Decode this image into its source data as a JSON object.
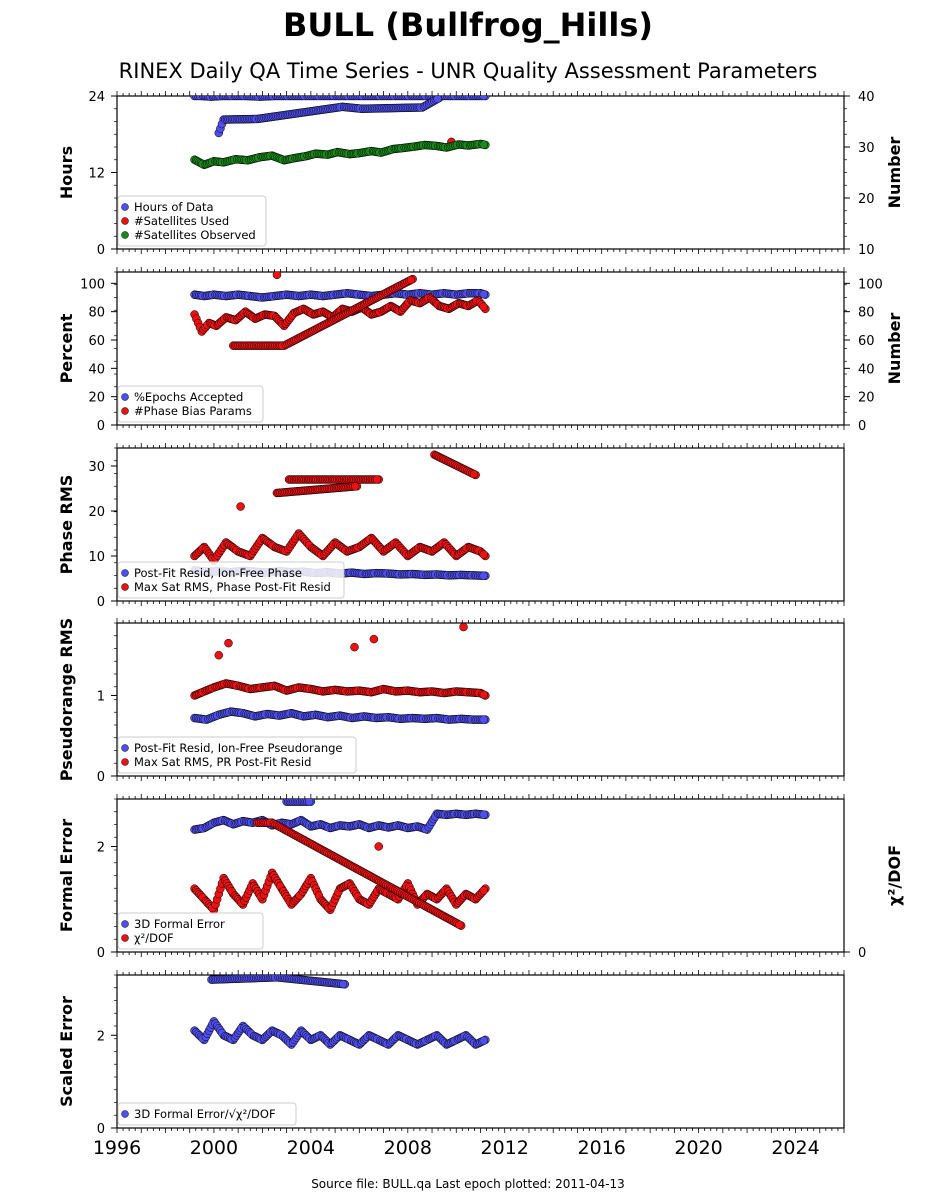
{
  "title": "BULL (Bullfrog_Hills)",
  "subtitle": "RINEX Daily QA Time Series - UNR Quality Assessment Parameters",
  "footer": "Source file: BULL.qa Last epoch plotted: 2011-04-13",
  "colors": {
    "blue": "#4f4fef",
    "red": "#ee1111",
    "green": "#1a8a1a",
    "edge": "#000000"
  },
  "chart_data": [
    {
      "type": "scatter",
      "ylabel": "Hours",
      "ylabel_right": "Number",
      "xlim": [
        1996,
        2026
      ],
      "ylim": [
        0,
        24
      ],
      "yticks": [
        0,
        12,
        24
      ],
      "ylim_right": [
        10,
        40
      ],
      "yticks_right": [
        10,
        20,
        30,
        40
      ],
      "legend_location": "lower-left",
      "series": [
        {
          "name": "Hours of Data",
          "color": "blue",
          "axis": "left",
          "x": [
            1999.2,
            1999.5,
            1999.9,
            2000.3,
            2000.8,
            2001.3,
            2001.9,
            2002.5,
            2003.1,
            2003.8,
            2004.4,
            2005.0,
            2005.6,
            2006.2,
            2006.9,
            2007.5,
            2008.1,
            2008.8,
            2009.4,
            2010.0,
            2010.6,
            2011.2,
            2000.2,
            2000.4,
            2001.8,
            2005.3,
            2006.1,
            2008.6,
            2009.3
          ],
          "y": [
            24,
            24,
            23.9,
            24,
            24,
            24,
            23.9,
            24,
            24,
            24,
            24,
            24,
            24,
            24,
            24,
            24,
            24,
            24,
            24,
            24,
            24,
            24,
            18.2,
            20.3,
            20.4,
            22.3,
            22.0,
            22.2,
            23.7
          ]
        },
        {
          "name": "#Satellites Used",
          "color": "red",
          "axis": "right",
          "x": [
            2009.8
          ],
          "y": [
            31
          ]
        },
        {
          "name": "#Satellites Observed",
          "color": "green",
          "axis": "right",
          "x": [
            1999.2,
            1999.6,
            2000.0,
            2000.4,
            2000.9,
            2001.4,
            2001.9,
            2002.4,
            2002.9,
            2003.3,
            2003.8,
            2004.2,
            2004.7,
            2005.1,
            2005.6,
            2006.0,
            2006.5,
            2006.9,
            2007.4,
            2007.8,
            2008.3,
            2008.7,
            2009.2,
            2009.6,
            2010.1,
            2010.5,
            2011.0,
            2011.2
          ],
          "y": [
            27.5,
            26.5,
            27.2,
            27.0,
            27.6,
            27.4,
            28.0,
            28.3,
            27.4,
            27.8,
            28.2,
            28.7,
            28.5,
            29.0,
            28.6,
            28.8,
            29.2,
            28.9,
            29.6,
            29.8,
            30.1,
            30.4,
            30.2,
            29.9,
            30.5,
            30.3,
            30.6,
            30.4
          ]
        }
      ]
    },
    {
      "type": "scatter",
      "ylabel": "Percent",
      "ylabel_right": "Number",
      "xlim": [
        1996,
        2026
      ],
      "ylim": [
        0,
        108
      ],
      "yticks": [
        0,
        20,
        40,
        60,
        80,
        100
      ],
      "ylim_right": [
        0,
        108
      ],
      "yticks_right": [
        0,
        20,
        40,
        60,
        80,
        100
      ],
      "legend_location": "lower-left",
      "series": [
        {
          "name": "%Epochs Accepted",
          "color": "blue",
          "axis": "left",
          "x": [
            1999.2,
            1999.6,
            2000.0,
            2000.5,
            2001.0,
            2001.5,
            2002.0,
            2002.5,
            2003.0,
            2003.5,
            2004.0,
            2004.5,
            2005.0,
            2005.5,
            2006.0,
            2006.5,
            2007.0,
            2007.5,
            2008.0,
            2008.5,
            2009.0,
            2009.5,
            2010.0,
            2010.5,
            2011.0,
            2011.2
          ],
          "y": [
            92,
            91,
            92,
            91,
            92,
            91,
            90,
            91,
            92,
            91,
            92,
            91,
            92,
            93,
            92,
            91,
            92,
            93,
            92,
            93,
            92,
            93,
            92,
            93,
            93,
            92
          ]
        },
        {
          "name": "#Phase Bias Params",
          "color": "red",
          "axis": "right",
          "x": [
            1999.2,
            1999.5,
            1999.8,
            2000.1,
            2000.5,
            2000.9,
            2001.3,
            2001.7,
            2002.1,
            2002.5,
            2002.9,
            2003.3,
            2003.7,
            2004.1,
            2004.5,
            2004.9,
            2005.3,
            2005.7,
            2006.1,
            2006.5,
            2006.9,
            2007.3,
            2007.7,
            2008.1,
            2008.5,
            2008.9,
            2009.3,
            2009.7,
            2010.1,
            2010.5,
            2010.9,
            2011.2,
            2002.6,
            2000.8,
            2002.9,
            2008.2
          ],
          "y": [
            78,
            66,
            72,
            70,
            76,
            74,
            80,
            75,
            78,
            77,
            70,
            79,
            82,
            78,
            80,
            76,
            82,
            80,
            83,
            78,
            80,
            84,
            80,
            88,
            86,
            90,
            84,
            82,
            86,
            84,
            88,
            82,
            106,
            56,
            56,
            103
          ]
        }
      ]
    },
    {
      "type": "scatter",
      "ylabel": "Phase RMS",
      "xlim": [
        1996,
        2026
      ],
      "ylim": [
        0,
        34
      ],
      "yticks": [
        0,
        10,
        20,
        30
      ],
      "legend_location": "lower-left",
      "series": [
        {
          "name": "Post-Fit Resid, Ion-Free Phase",
          "color": "blue",
          "x": [
            1999.2,
            1999.7,
            2000.2,
            2000.7,
            2001.2,
            2001.7,
            2002.2,
            2002.7,
            2003.2,
            2003.7,
            2004.2,
            2004.7,
            2005.2,
            2005.7,
            2006.2,
            2006.7,
            2007.2,
            2007.7,
            2008.2,
            2008.7,
            2009.2,
            2009.7,
            2010.2,
            2010.7,
            2011.2
          ],
          "y": [
            6.8,
            6.5,
            6.6,
            6.4,
            6.7,
            6.5,
            6.3,
            6.6,
            6.4,
            6.5,
            6.2,
            6.4,
            6.1,
            6.3,
            6.0,
            6.2,
            6.1,
            5.9,
            6.0,
            5.8,
            5.9,
            5.7,
            5.8,
            5.7,
            5.6
          ]
        },
        {
          "name": "Max Sat RMS, Phase Post-Fit Resid",
          "color": "red",
          "x": [
            1999.2,
            1999.6,
            2000.0,
            2000.5,
            2001.0,
            2001.5,
            2002.0,
            2002.5,
            2003.0,
            2003.5,
            2004.0,
            2004.5,
            2005.0,
            2005.5,
            2006.0,
            2006.5,
            2007.0,
            2007.5,
            2008.0,
            2008.5,
            2009.0,
            2009.5,
            2010.0,
            2010.5,
            2011.0,
            2011.2,
            2009.1,
            2010.8,
            2003.1,
            2006.8,
            2002.6,
            2005.9,
            2001.1
          ],
          "y": [
            10,
            12,
            9,
            13,
            11,
            10,
            14,
            12,
            11,
            15,
            12,
            10,
            13,
            11,
            12,
            14,
            11,
            13,
            10,
            12,
            11,
            13,
            10,
            12,
            11,
            10,
            32.5,
            28,
            27,
            27,
            24,
            25.5,
            21
          ]
        }
      ]
    },
    {
      "type": "scatter",
      "ylabel": "Pseudorange RMS",
      "xlim": [
        1996,
        2026
      ],
      "ylim": [
        0,
        1.9
      ],
      "yticks": [
        0,
        1
      ],
      "legend_location": "lower-left",
      "series": [
        {
          "name": "Post-Fit Resid, Ion-Free Pseudorange",
          "color": "blue",
          "x": [
            1999.2,
            1999.7,
            2000.2,
            2000.7,
            2001.2,
            2001.7,
            2002.2,
            2002.7,
            2003.2,
            2003.7,
            2004.2,
            2004.7,
            2005.2,
            2005.7,
            2006.2,
            2006.7,
            2007.2,
            2007.7,
            2008.2,
            2008.7,
            2009.2,
            2009.7,
            2010.2,
            2010.7,
            2011.2
          ],
          "y": [
            0.72,
            0.7,
            0.76,
            0.8,
            0.78,
            0.74,
            0.77,
            0.75,
            0.78,
            0.74,
            0.76,
            0.73,
            0.75,
            0.72,
            0.74,
            0.72,
            0.73,
            0.71,
            0.72,
            0.71,
            0.72,
            0.7,
            0.71,
            0.7,
            0.7
          ]
        },
        {
          "name": "Max Sat RMS, PR Post-Fit Resid",
          "color": "red",
          "x": [
            1999.2,
            1999.6,
            2000.0,
            2000.5,
            2001.0,
            2001.5,
            2002.0,
            2002.5,
            2003.0,
            2003.5,
            2004.0,
            2004.5,
            2005.0,
            2005.5,
            2006.0,
            2006.5,
            2007.0,
            2007.5,
            2008.0,
            2008.5,
            2009.0,
            2009.5,
            2010.0,
            2010.5,
            2011.0,
            2011.2,
            2010.3,
            2006.6,
            2005.8,
            2000.6,
            2000.2
          ],
          "y": [
            1.0,
            1.05,
            1.1,
            1.15,
            1.12,
            1.08,
            1.1,
            1.12,
            1.06,
            1.1,
            1.08,
            1.05,
            1.07,
            1.05,
            1.06,
            1.04,
            1.08,
            1.05,
            1.06,
            1.04,
            1.05,
            1.03,
            1.05,
            1.04,
            1.03,
            1.0,
            1.85,
            1.7,
            1.6,
            1.65,
            1.5
          ]
        }
      ]
    },
    {
      "type": "scatter",
      "ylabel": "Formal Error",
      "ylabel_right": "χ²/DOF",
      "xlim": [
        1996,
        2026
      ],
      "ylim": [
        0,
        2.9
      ],
      "yticks": [
        0,
        2
      ],
      "yticks_right": [
        0
      ],
      "legend_location": "lower-left",
      "series": [
        {
          "name": "3D Formal Error",
          "color": "blue",
          "x": [
            1999.2,
            1999.6,
            2000.0,
            2000.4,
            2000.8,
            2001.2,
            2001.6,
            2002.0,
            2002.4,
            2002.8,
            2003.2,
            2003.6,
            2004.0,
            2004.4,
            2004.8,
            2005.2,
            2005.6,
            2006.0,
            2006.4,
            2006.8,
            2007.2,
            2007.6,
            2008.0,
            2008.4,
            2008.8,
            2009.2,
            2009.6,
            2010.0,
            2010.4,
            2010.8,
            2011.2,
            2003.0,
            2004.0
          ],
          "y": [
            2.32,
            2.35,
            2.45,
            2.5,
            2.42,
            2.48,
            2.45,
            2.5,
            2.4,
            2.45,
            2.42,
            2.5,
            2.38,
            2.42,
            2.35,
            2.4,
            2.38,
            2.42,
            2.35,
            2.4,
            2.36,
            2.4,
            2.35,
            2.38,
            2.32,
            2.62,
            2.6,
            2.62,
            2.6,
            2.62,
            2.6,
            2.85,
            2.85
          ]
        },
        {
          "name": "χ²/DOF",
          "color": "red",
          "x": [
            1999.2,
            1999.6,
            2000.0,
            2000.4,
            2000.8,
            2001.2,
            2001.6,
            2002.0,
            2002.4,
            2002.8,
            2003.2,
            2003.6,
            2004.0,
            2004.4,
            2004.8,
            2005.2,
            2005.6,
            2006.0,
            2006.4,
            2006.8,
            2007.2,
            2007.6,
            2008.0,
            2008.4,
            2008.8,
            2009.2,
            2009.6,
            2010.0,
            2010.4,
            2010.8,
            2011.2,
            2001.8,
            2002.4,
            2010.2,
            2006.8
          ],
          "y": [
            1.2,
            1.0,
            0.8,
            1.4,
            1.1,
            0.9,
            1.3,
            1.0,
            1.5,
            1.2,
            0.9,
            1.1,
            1.4,
            1.0,
            0.8,
            1.2,
            1.3,
            1.0,
            0.9,
            1.2,
            1.1,
            1.0,
            1.3,
            0.9,
            1.1,
            1.0,
            1.2,
            0.9,
            1.1,
            1.0,
            1.2,
            2.45,
            2.45,
            0.5,
            2.0
          ]
        }
      ]
    },
    {
      "type": "scatter",
      "ylabel": "Scaled Error",
      "xlim": [
        1996,
        2026
      ],
      "xticks": [
        1996,
        2000,
        2004,
        2008,
        2012,
        2016,
        2020,
        2024
      ],
      "ylim": [
        0,
        3.3
      ],
      "yticks": [
        0,
        2
      ],
      "legend_location": "lower-left",
      "series": [
        {
          "name": "3D Formal Error/√χ²/DOF",
          "color": "blue",
          "x": [
            1999.2,
            1999.6,
            2000.0,
            2000.4,
            2000.8,
            2001.2,
            2001.6,
            2002.0,
            2002.4,
            2002.8,
            2003.2,
            2003.6,
            2004.0,
            2004.4,
            2004.8,
            2005.2,
            2005.6,
            2006.0,
            2006.4,
            2006.8,
            2007.2,
            2007.6,
            2008.0,
            2008.4,
            2008.8,
            2009.2,
            2009.6,
            2010.0,
            2010.4,
            2010.8,
            2011.2,
            1999.9,
            2002.6,
            2005.4
          ],
          "y": [
            2.1,
            1.9,
            2.3,
            2.0,
            1.9,
            2.2,
            2.0,
            1.9,
            2.1,
            2.0,
            1.8,
            2.1,
            1.9,
            2.0,
            1.8,
            2.0,
            1.9,
            1.8,
            2.0,
            1.9,
            1.8,
            2.0,
            1.9,
            1.8,
            1.9,
            2.0,
            1.8,
            1.9,
            2.0,
            1.8,
            1.9,
            3.2,
            3.25,
            3.1
          ]
        }
      ]
    }
  ]
}
